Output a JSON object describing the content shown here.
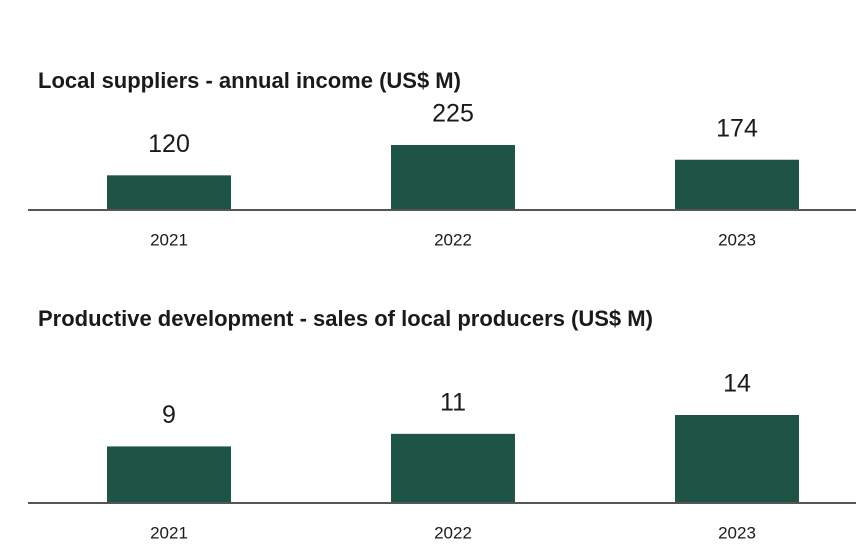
{
  "chart_data": [
    {
      "type": "bar",
      "title": "Local suppliers - annual income (US$ M)",
      "categories": [
        "2021",
        "2022",
        "2023"
      ],
      "values": [
        120,
        225,
        174
      ],
      "color": "#1e5446"
    },
    {
      "type": "bar",
      "title": "Productive development - sales of local producers (US$ M)",
      "categories": [
        "2021",
        "2022",
        "2023"
      ],
      "values": [
        9,
        11,
        14
      ],
      "color": "#1e5446"
    }
  ]
}
